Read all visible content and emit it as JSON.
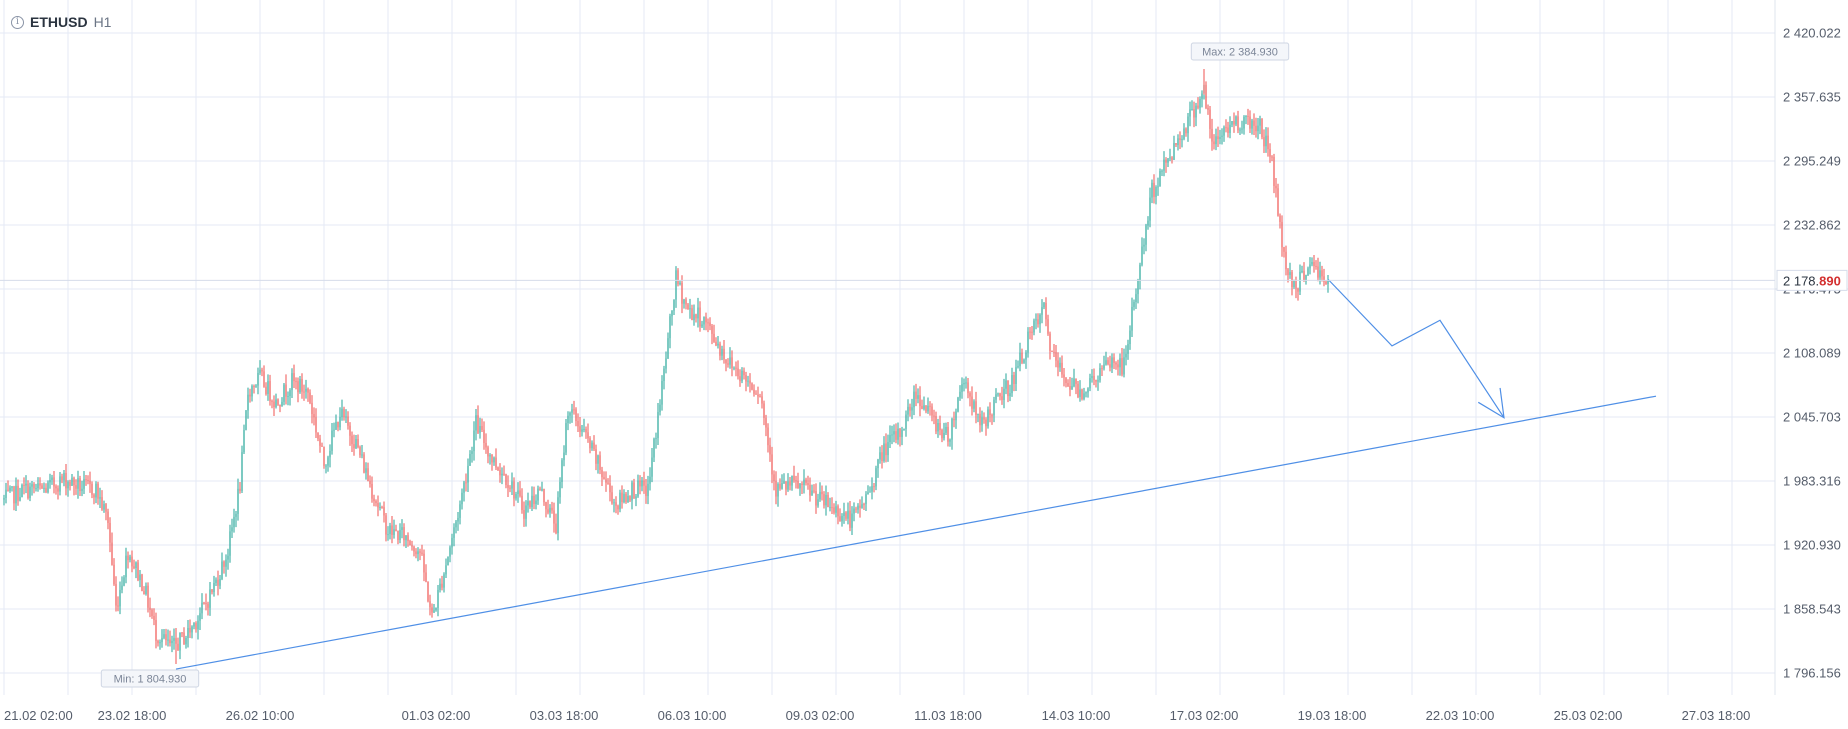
{
  "header": {
    "info_icon": "info-circle-icon",
    "symbol": "ETHUSD",
    "timeframe": "H1"
  },
  "colors": {
    "up": "#26a69a",
    "down": "#ef5350",
    "grid": "#e4eaf5",
    "drawing": "#4f8fe6",
    "last_price_accent": "#d32f2f"
  },
  "chart_data": {
    "type": "candlestick",
    "y_ticks": [
      "2 420.022",
      "2 357.635",
      "2 295.249",
      "2 232.862",
      "2 170.475",
      "2 108.089",
      "2 045.703",
      "1 983.316",
      "1 920.930",
      "1 858.543",
      "1 796.156"
    ],
    "y_tick_values": [
      2420.022,
      2357.635,
      2295.249,
      2232.862,
      2170.475,
      2108.089,
      2045.703,
      1983.316,
      1920.93,
      1858.543,
      1796.156
    ],
    "x_ticks": [
      "21.02 02:00",
      "23.02 18:00",
      "26.02 10:00",
      "01.03 02:00",
      "03.03 18:00",
      "06.03 10:00",
      "09.03 02:00",
      "11.03 18:00",
      "14.03 10:00",
      "17.03 02:00",
      "19.03 18:00",
      "22.03 10:00",
      "25.03 02:00",
      "27.03 18:00"
    ],
    "x_tick_times": [
      "2024-02-21 02:00",
      "2024-02-23 18:00",
      "2024-02-26 10:00",
      "2024-03-01 02:00",
      "2024-03-03 18:00",
      "2024-03-06 10:00",
      "2024-03-09 02:00",
      "2024-03-11 18:00",
      "2024-03-14 10:00",
      "2024-03-17 02:00",
      "2024-03-19 18:00",
      "2024-03-22 10:00",
      "2024-03-25 02:00",
      "2024-03-27 18:00"
    ],
    "close_path": [
      [
        "2024-02-21 02:00",
        1965
      ],
      [
        "2024-02-21 12:00",
        1975
      ],
      [
        "2024-02-21 22:00",
        1975
      ],
      [
        "2024-02-22 08:00",
        1985
      ],
      [
        "2024-02-22 16:00",
        1978
      ],
      [
        "2024-02-23 00:00",
        1975
      ],
      [
        "2024-02-23 06:00",
        1945
      ],
      [
        "2024-02-23 10:00",
        1860
      ],
      [
        "2024-02-23 16:00",
        1915
      ],
      [
        "2024-02-24 00:00",
        1880
      ],
      [
        "2024-02-24 06:00",
        1835
      ],
      [
        "2024-02-24 14:00",
        1820
      ],
      [
        "2024-02-24 22:00",
        1835
      ],
      [
        "2024-02-25 06:00",
        1860
      ],
      [
        "2024-02-25 12:00",
        1885
      ],
      [
        "2024-02-25 18:00",
        1915
      ],
      [
        "2024-02-26 00:00",
        1980
      ],
      [
        "2024-02-26 04:00",
        2070
      ],
      [
        "2024-02-26 10:00",
        2085
      ],
      [
        "2024-02-26 18:00",
        2060
      ],
      [
        "2024-02-27 02:00",
        2080
      ],
      [
        "2024-02-27 10:00",
        2070
      ],
      [
        "2024-02-27 18:00",
        2000
      ],
      [
        "2024-02-28 02:00",
        2050
      ],
      [
        "2024-02-28 10:00",
        2020
      ],
      [
        "2024-02-28 18:00",
        1975
      ],
      [
        "2024-02-29 02:00",
        1935
      ],
      [
        "2024-02-29 10:00",
        1930
      ],
      [
        "2024-02-29 18:00",
        1915
      ],
      [
        "2024-03-01 00:00",
        1850
      ],
      [
        "2024-03-01 06:00",
        1895
      ],
      [
        "2024-03-01 14:00",
        1960
      ],
      [
        "2024-03-01 22:00",
        2040
      ],
      [
        "2024-03-02 06:00",
        2005
      ],
      [
        "2024-03-02 14:00",
        1985
      ],
      [
        "2024-03-02 22:00",
        1955
      ],
      [
        "2024-03-03 06:00",
        1975
      ],
      [
        "2024-03-03 14:00",
        1940
      ],
      [
        "2024-03-03 20:00",
        2055
      ],
      [
        "2024-03-04 04:00",
        2030
      ],
      [
        "2024-03-04 12:00",
        1995
      ],
      [
        "2024-03-04 20:00",
        1960
      ],
      [
        "2024-03-05 04:00",
        1975
      ],
      [
        "2024-03-05 12:00",
        1975
      ],
      [
        "2024-03-05 20:00",
        2090
      ],
      [
        "2024-03-06 02:00",
        2180
      ],
      [
        "2024-03-06 08:00",
        2150
      ],
      [
        "2024-03-06 16:00",
        2140
      ],
      [
        "2024-03-06 22:00",
        2120
      ],
      [
        "2024-03-07 04:00",
        2100
      ],
      [
        "2024-03-07 12:00",
        2085
      ],
      [
        "2024-03-07 20:00",
        2070
      ],
      [
        "2024-03-08 04:00",
        1975
      ],
      [
        "2024-03-08 12:00",
        1980
      ],
      [
        "2024-03-08 20:00",
        1975
      ],
      [
        "2024-03-09 02:00",
        1965
      ],
      [
        "2024-03-09 10:00",
        1955
      ],
      [
        "2024-03-09 18:00",
        1945
      ],
      [
        "2024-03-10 02:00",
        1970
      ],
      [
        "2024-03-10 10:00",
        2015
      ],
      [
        "2024-03-10 18:00",
        2030
      ],
      [
        "2024-03-11 02:00",
        2070
      ],
      [
        "2024-03-11 10:00",
        2045
      ],
      [
        "2024-03-11 18:00",
        2025
      ],
      [
        "2024-03-12 02:00",
        2085
      ],
      [
        "2024-03-12 10:00",
        2035
      ],
      [
        "2024-03-12 18:00",
        2060
      ],
      [
        "2024-03-13 02:00",
        2080
      ],
      [
        "2024-03-13 10:00",
        2120
      ],
      [
        "2024-03-13 18:00",
        2150
      ],
      [
        "2024-03-13 22:00",
        2105
      ],
      [
        "2024-03-14 04:00",
        2085
      ],
      [
        "2024-03-14 12:00",
        2070
      ],
      [
        "2024-03-14 20:00",
        2085
      ],
      [
        "2024-03-15 04:00",
        2100
      ],
      [
        "2024-03-15 10:00",
        2095
      ],
      [
        "2024-03-15 16:00",
        2170
      ],
      [
        "2024-03-16 00:00",
        2265
      ],
      [
        "2024-03-16 06:00",
        2290
      ],
      [
        "2024-03-16 14:00",
        2320
      ],
      [
        "2024-03-17 02:00",
        2365
      ],
      [
        "2024-03-17 06:00",
        2310
      ],
      [
        "2024-03-17 14:00",
        2330
      ],
      [
        "2024-03-17 22:00",
        2335
      ],
      [
        "2024-03-18 06:00",
        2330
      ],
      [
        "2024-03-18 12:00",
        2295
      ],
      [
        "2024-03-18 18:00",
        2200
      ],
      [
        "2024-03-19 00:00",
        2170
      ],
      [
        "2024-03-19 06:00",
        2195
      ],
      [
        "2024-03-19 12:00",
        2185
      ],
      [
        "2024-03-19 16:00",
        2178.89
      ]
    ],
    "max_label": "Max: 2 384.930",
    "max_value": 2384.93,
    "max_time": "2024-03-17 02:00",
    "min_label": "Min: 1 804.930",
    "min_value": 1804.93,
    "min_time": "2024-02-24 16:00",
    "last_price": {
      "main": "2 178.",
      "accent": "890",
      "value": 2178.89,
      "hidden_label": "2 170.475"
    },
    "drawings": {
      "trendline": [
        [
          "2024-02-24 16:00",
          1800
        ],
        [
          "2024-03-26 12:00",
          2066
        ]
      ],
      "forecast_path": [
        [
          "2024-03-19 16:00",
          2180
        ],
        [
          "2024-03-21 00:00",
          2115
        ],
        [
          "2024-03-22 00:00",
          2140
        ],
        [
          "2024-03-23 08:00",
          2045
        ]
      ]
    },
    "grid": true
  }
}
